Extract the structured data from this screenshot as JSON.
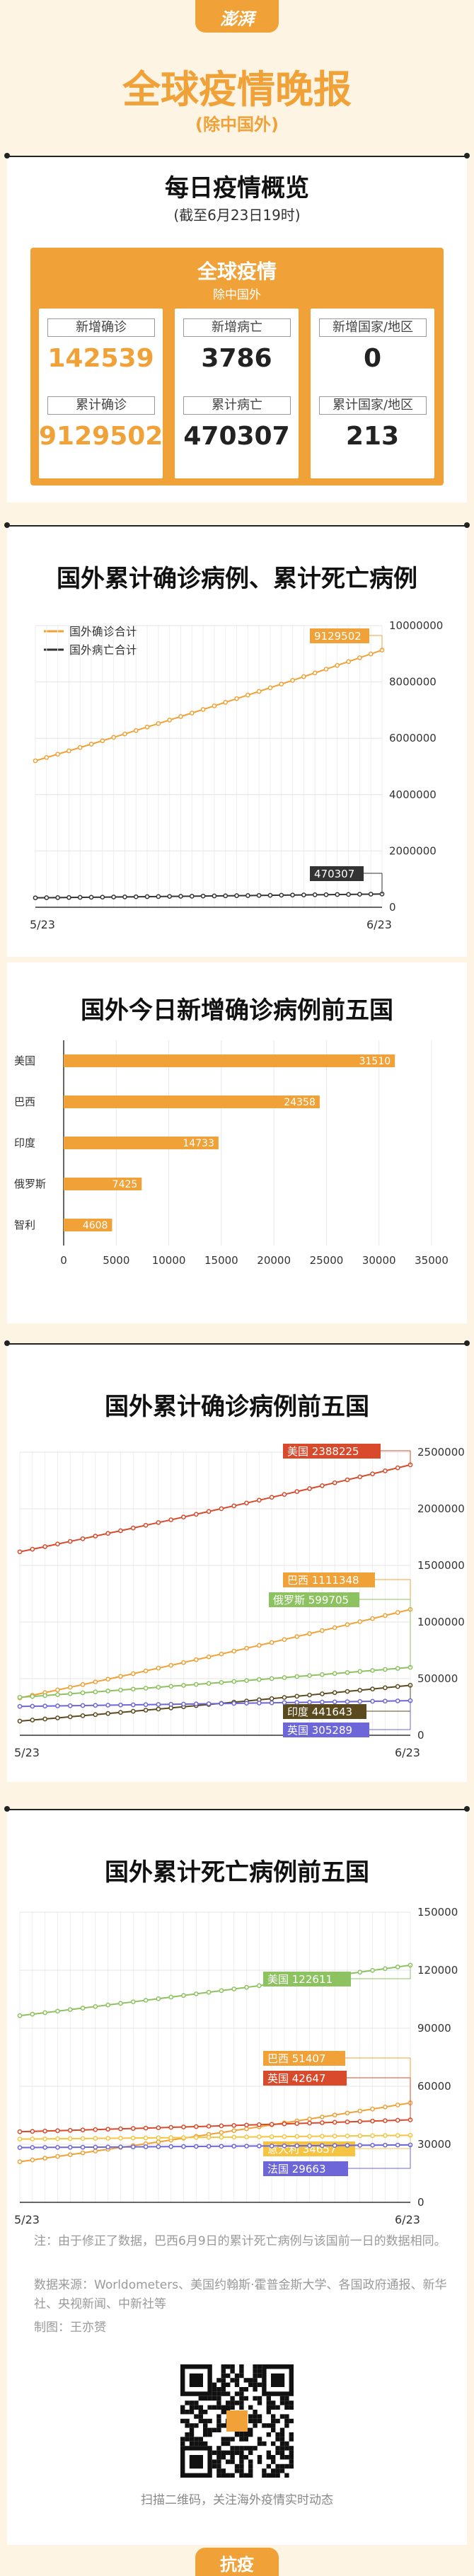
{
  "header": {
    "logo": "澎湃",
    "title": "全球疫情晚报",
    "subtitle": "(除中国外)"
  },
  "overview": {
    "title": "每日疫情概览",
    "date": "(截至6月23日19时)",
    "box_title": "全球疫情",
    "box_subtitle": "除中国外",
    "stats": [
      {
        "label": "新增确诊",
        "value": "142539",
        "color": "#f0a238"
      },
      {
        "label": "新增病亡",
        "value": "3786",
        "color": "#222222"
      },
      {
        "label": "新增国家/地区",
        "value": "0",
        "color": "#222222"
      },
      {
        "label": "累计确诊",
        "value": "9129502",
        "color": "#f0a238"
      },
      {
        "label": "累计病亡",
        "value": "470307",
        "color": "#222222"
      },
      {
        "label": "累计国家/地区",
        "value": "213",
        "color": "#222222"
      }
    ]
  },
  "charts": {
    "cumulative": {
      "title": "国外累计确诊病例、累计死亡病例"
    },
    "top5_new": {
      "title": "国外今日新增确诊病例前五国"
    },
    "top5_cases": {
      "title": "国外累计确诊病例前五国"
    },
    "top5_deaths": {
      "title": "国外累计死亡病例前五国"
    }
  },
  "chart_data": [
    {
      "type": "line",
      "title": "国外累计确诊病例、累计死亡病例",
      "x_start": "5/23",
      "x_end": "6/23",
      "points": 32,
      "ylim": [
        0,
        10000000
      ],
      "yticks": [
        "10000000",
        "8000000",
        "6000000",
        "4000000",
        "2000000",
        "0"
      ],
      "xticks": [
        "5/23",
        "6/23"
      ],
      "series": [
        {
          "name": "国外确诊合计",
          "color": "#f0a238",
          "start": 5200000,
          "end": 9129502,
          "end_label": "9129502"
        },
        {
          "name": "国外病亡合计",
          "color": "#333333",
          "start": 335000,
          "end": 470307,
          "end_label": "470307"
        }
      ]
    },
    {
      "type": "bar",
      "title": "国外今日新增确诊病例前五国",
      "categories": [
        "美国",
        "巴西",
        "印度",
        "俄罗斯",
        "智利"
      ],
      "values": [
        31510,
        24358,
        14733,
        7425,
        4608
      ],
      "color": "#f0a238",
      "xlim": [
        0,
        35000
      ],
      "xticks": [
        "0",
        "5000",
        "10000",
        "15000",
        "20000",
        "25000",
        "30000",
        "35000"
      ]
    },
    {
      "type": "line",
      "title": "国外累计确诊病例前五国",
      "x_start": "5/23",
      "x_end": "6/23",
      "points": 32,
      "ylim": [
        0,
        2500000
      ],
      "yticks": [
        "2500000",
        "2000000",
        "1500000",
        "1000000",
        "500000",
        "0"
      ],
      "xticks": [
        "5/23",
        "6/23"
      ],
      "series": [
        {
          "name": "美国",
          "color": "#d84a2b",
          "start": 1620000,
          "end": 2388225,
          "end_label": "2388225"
        },
        {
          "name": "巴西",
          "color": "#f0a238",
          "start": 330000,
          "end": 1111348,
          "end_label": "1111348"
        },
        {
          "name": "俄罗斯",
          "color": "#8dc260",
          "start": 335000,
          "end": 599705,
          "end_label": "599705"
        },
        {
          "name": "印度",
          "color": "#5b4a1e",
          "start": 125000,
          "end": 441643,
          "end_label": "441643"
        },
        {
          "name": "英国",
          "color": "#6d66d8",
          "start": 255000,
          "end": 305289,
          "end_label": "305289"
        }
      ]
    },
    {
      "type": "line",
      "title": "国外累计死亡病例前五国",
      "x_start": "5/23",
      "x_end": "6/23",
      "points": 32,
      "ylim": [
        0,
        150000
      ],
      "yticks": [
        "150000",
        "120000",
        "90000",
        "60000",
        "30000",
        "0"
      ],
      "xticks": [
        "5/23",
        "6/23"
      ],
      "series": [
        {
          "name": "美国",
          "color": "#8dc260",
          "start": 96500,
          "end": 122611,
          "end_label": "122611"
        },
        {
          "name": "巴西",
          "color": "#f0a238",
          "start": 21000,
          "end": 51407,
          "end_label": "51407"
        },
        {
          "name": "英国",
          "color": "#d84a2b",
          "start": 36500,
          "end": 42647,
          "end_label": "42647"
        },
        {
          "name": "意大利",
          "color": "#f5c542",
          "start": 32700,
          "end": 34657,
          "end_label": "34657"
        },
        {
          "name": "法国",
          "color": "#6d66d8",
          "start": 28300,
          "end": 29663,
          "end_label": "29663"
        }
      ]
    }
  ],
  "footer": {
    "note": "注：由于修正了数据，巴西6月9日的累计死亡病例与该国前一日的数据相同。",
    "source": "数据来源：Worldometers、美国约翰斯·霍普金斯大学、各国政府通报、新华社、央视新闻、中新社等",
    "author": "制图：王亦赟",
    "qr_caption": "扫描二维码，关注海外疫情实时动态",
    "tag": "抗疫"
  }
}
